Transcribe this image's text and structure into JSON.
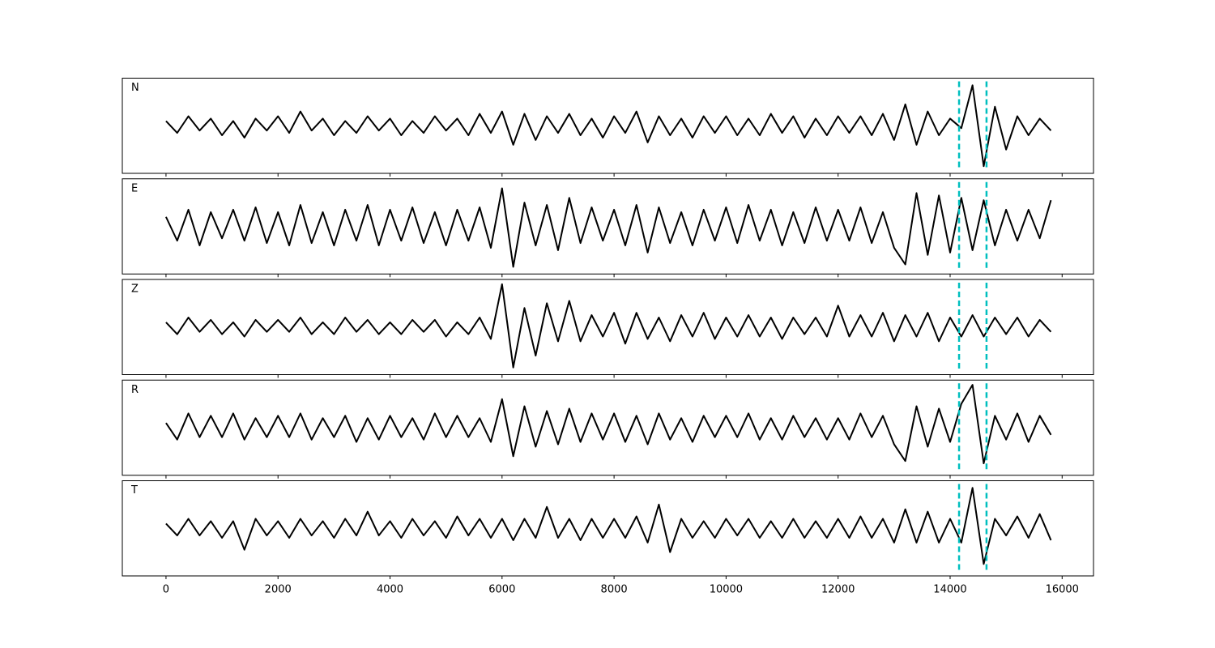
{
  "chart_data": {
    "type": "line",
    "x": [
      0,
      200,
      400,
      600,
      800,
      1000,
      1200,
      1400,
      1600,
      1800,
      2000,
      2200,
      2400,
      2600,
      2800,
      3000,
      3200,
      3400,
      3600,
      3800,
      4000,
      4200,
      4400,
      4600,
      4800,
      5000,
      5200,
      5400,
      5600,
      5800,
      6000,
      6200,
      6400,
      6600,
      6800,
      7000,
      7200,
      7400,
      7600,
      7800,
      8000,
      8200,
      8400,
      8600,
      8800,
      9000,
      9200,
      9400,
      9600,
      9800,
      10000,
      10200,
      10400,
      10600,
      10800,
      11000,
      11200,
      11400,
      11600,
      11800,
      12000,
      12200,
      12400,
      12600,
      12800,
      13000,
      13200,
      13400,
      13600,
      13800,
      14000,
      14200,
      14400,
      14600,
      14800,
      15000,
      15200,
      15400,
      15600,
      15800
    ],
    "xlim": [
      -780,
      16560
    ],
    "xticks": [
      0,
      2000,
      4000,
      6000,
      8000,
      10000,
      12000,
      14000,
      16000
    ],
    "ylim": [
      -1,
      1
    ],
    "vlines": [
      14160,
      14650
    ],
    "vline_color": "#00bfbf",
    "series": [
      {
        "name": "N",
        "color": "#000000",
        "values": [
          0.1,
          -0.15,
          0.2,
          -0.1,
          0.15,
          -0.2,
          0.1,
          -0.25,
          0.15,
          -0.1,
          0.2,
          -0.15,
          0.3,
          -0.1,
          0.15,
          -0.2,
          0.1,
          -0.15,
          0.2,
          -0.1,
          0.15,
          -0.2,
          0.1,
          -0.15,
          0.2,
          -0.1,
          0.15,
          -0.2,
          0.25,
          -0.15,
          0.3,
          -0.4,
          0.25,
          -0.3,
          0.2,
          -0.15,
          0.25,
          -0.2,
          0.15,
          -0.25,
          0.2,
          -0.15,
          0.3,
          -0.35,
          0.2,
          -0.2,
          0.15,
          -0.25,
          0.2,
          -0.15,
          0.2,
          -0.2,
          0.15,
          -0.2,
          0.25,
          -0.15,
          0.2,
          -0.25,
          0.15,
          -0.2,
          0.2,
          -0.15,
          0.2,
          -0.2,
          0.25,
          -0.3,
          0.45,
          -0.4,
          0.3,
          -0.2,
          0.15,
          -0.05,
          0.85,
          -0.85,
          0.4,
          -0.5,
          0.2,
          -0.2,
          0.15,
          -0.1
        ]
      },
      {
        "name": "E",
        "color": "#000000",
        "values": [
          0.2,
          -0.3,
          0.35,
          -0.4,
          0.3,
          -0.25,
          0.35,
          -0.3,
          0.4,
          -0.35,
          0.3,
          -0.4,
          0.45,
          -0.35,
          0.3,
          -0.4,
          0.35,
          -0.3,
          0.45,
          -0.4,
          0.35,
          -0.3,
          0.4,
          -0.35,
          0.3,
          -0.4,
          0.35,
          -0.3,
          0.4,
          -0.45,
          0.8,
          -0.85,
          0.5,
          -0.4,
          0.45,
          -0.5,
          0.6,
          -0.35,
          0.4,
          -0.3,
          0.35,
          -0.4,
          0.45,
          -0.55,
          0.4,
          -0.35,
          0.3,
          -0.4,
          0.35,
          -0.3,
          0.4,
          -0.35,
          0.45,
          -0.3,
          0.35,
          -0.4,
          0.3,
          -0.35,
          0.4,
          -0.3,
          0.35,
          -0.3,
          0.4,
          -0.35,
          0.3,
          -0.45,
          -0.8,
          0.7,
          -0.6,
          0.65,
          -0.55,
          0.6,
          -0.5,
          0.55,
          -0.4,
          0.35,
          -0.3,
          0.35,
          -0.25,
          0.55
        ]
      },
      {
        "name": "Z",
        "color": "#000000",
        "values": [
          0.1,
          -0.15,
          0.2,
          -0.1,
          0.15,
          -0.15,
          0.1,
          -0.2,
          0.15,
          -0.1,
          0.15,
          -0.1,
          0.2,
          -0.15,
          0.1,
          -0.15,
          0.2,
          -0.1,
          0.15,
          -0.15,
          0.1,
          -0.15,
          0.15,
          -0.1,
          0.15,
          -0.2,
          0.1,
          -0.15,
          0.2,
          -0.25,
          0.9,
          -0.85,
          0.4,
          -0.6,
          0.5,
          -0.3,
          0.55,
          -0.3,
          0.25,
          -0.2,
          0.3,
          -0.35,
          0.3,
          -0.25,
          0.2,
          -0.3,
          0.25,
          -0.2,
          0.3,
          -0.25,
          0.2,
          -0.2,
          0.25,
          -0.2,
          0.2,
          -0.25,
          0.2,
          -0.15,
          0.2,
          -0.2,
          0.45,
          -0.2,
          0.25,
          -0.2,
          0.3,
          -0.3,
          0.25,
          -0.2,
          0.3,
          -0.3,
          0.2,
          -0.2,
          0.25,
          -0.2,
          0.2,
          -0.15,
          0.2,
          -0.2,
          0.15,
          -0.1
        ]
      },
      {
        "name": "R",
        "color": "#000000",
        "values": [
          0.1,
          -0.25,
          0.3,
          -0.2,
          0.25,
          -0.2,
          0.3,
          -0.25,
          0.2,
          -0.2,
          0.25,
          -0.2,
          0.3,
          -0.25,
          0.2,
          -0.2,
          0.25,
          -0.3,
          0.2,
          -0.25,
          0.25,
          -0.2,
          0.2,
          -0.25,
          0.3,
          -0.2,
          0.25,
          -0.2,
          0.2,
          -0.3,
          0.6,
          -0.6,
          0.45,
          -0.4,
          0.35,
          -0.35,
          0.4,
          -0.3,
          0.3,
          -0.25,
          0.3,
          -0.3,
          0.25,
          -0.35,
          0.3,
          -0.25,
          0.2,
          -0.3,
          0.25,
          -0.2,
          0.25,
          -0.2,
          0.3,
          -0.25,
          0.2,
          -0.25,
          0.25,
          -0.2,
          0.2,
          -0.25,
          0.2,
          -0.25,
          0.3,
          -0.2,
          0.25,
          -0.35,
          -0.7,
          0.45,
          -0.4,
          0.4,
          -0.3,
          0.5,
          0.9,
          -0.75,
          0.25,
          -0.25,
          0.3,
          -0.3,
          0.25,
          -0.15
        ]
      },
      {
        "name": "T",
        "color": "#000000",
        "values": [
          0.1,
          -0.15,
          0.2,
          -0.15,
          0.15,
          -0.2,
          0.15,
          -0.45,
          0.2,
          -0.15,
          0.15,
          -0.2,
          0.2,
          -0.15,
          0.15,
          -0.2,
          0.2,
          -0.15,
          0.35,
          -0.15,
          0.15,
          -0.2,
          0.2,
          -0.15,
          0.15,
          -0.2,
          0.25,
          -0.15,
          0.2,
          -0.2,
          0.2,
          -0.25,
          0.2,
          -0.2,
          0.45,
          -0.2,
          0.2,
          -0.25,
          0.2,
          -0.2,
          0.2,
          -0.2,
          0.25,
          -0.3,
          0.5,
          -0.5,
          0.2,
          -0.2,
          0.15,
          -0.2,
          0.2,
          -0.15,
          0.2,
          -0.2,
          0.15,
          -0.2,
          0.2,
          -0.2,
          0.15,
          -0.2,
          0.2,
          -0.2,
          0.25,
          -0.2,
          0.2,
          -0.3,
          0.4,
          -0.3,
          0.35,
          -0.3,
          0.2,
          -0.3,
          0.85,
          -0.75,
          0.2,
          -0.15,
          0.25,
          -0.2,
          0.3,
          -0.25
        ]
      }
    ]
  }
}
